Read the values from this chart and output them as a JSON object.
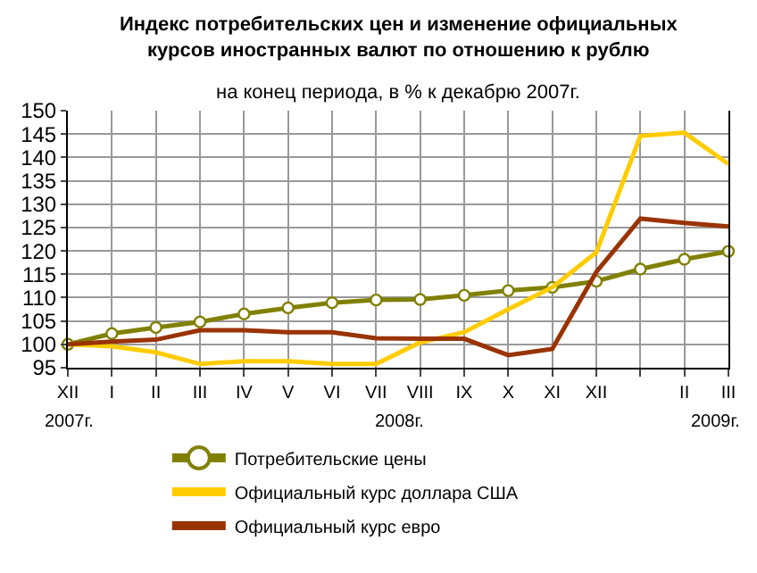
{
  "chart_data": {
    "type": "line",
    "title": "Индекс потребительских цен и изменение официальных курсов иностранных валют по отношению к рублю",
    "subtitle": "на конец периода, в % к декабрю 2007г.",
    "categories": [
      "XII",
      "I",
      "II",
      "III",
      "IV",
      "V",
      "VI",
      "VII",
      "VIII",
      "IX",
      "X",
      "XI",
      "XII",
      null,
      "II",
      "III"
    ],
    "series": [
      {
        "name": "Потребительские цены",
        "color": "#808000",
        "marker": "circle",
        "values": [
          100,
          102.3,
          103.6,
          104.8,
          106.5,
          107.8,
          108.9,
          109.5,
          109.6,
          110.5,
          111.5,
          112.2,
          113.5,
          116.1,
          118.2,
          119.9
        ]
      },
      {
        "name": "Официальный курс доллара США",
        "color": "#ffcc00",
        "values": [
          100,
          99.6,
          98.3,
          95.8,
          96.4,
          96.4,
          95.8,
          95.8,
          100.4,
          102.6,
          107.5,
          112.2,
          119.7,
          144.6,
          145.3,
          138.6
        ]
      },
      {
        "name": "Официальный курс евро",
        "color": "#993300",
        "values": [
          100,
          100.6,
          101.0,
          103.0,
          103.0,
          102.6,
          102.6,
          101.3,
          101.2,
          101.2,
          97.7,
          99.0,
          115.5,
          126.9,
          126.0,
          125.2
        ]
      }
    ],
    "ylim": [
      95,
      150
    ],
    "yticks": [
      95,
      100,
      105,
      110,
      115,
      120,
      125,
      130,
      135,
      140,
      145,
      150
    ],
    "grid": true,
    "legend": "bottom",
    "annotations": [
      "2007г.",
      "2008г.",
      "2009г."
    ]
  }
}
